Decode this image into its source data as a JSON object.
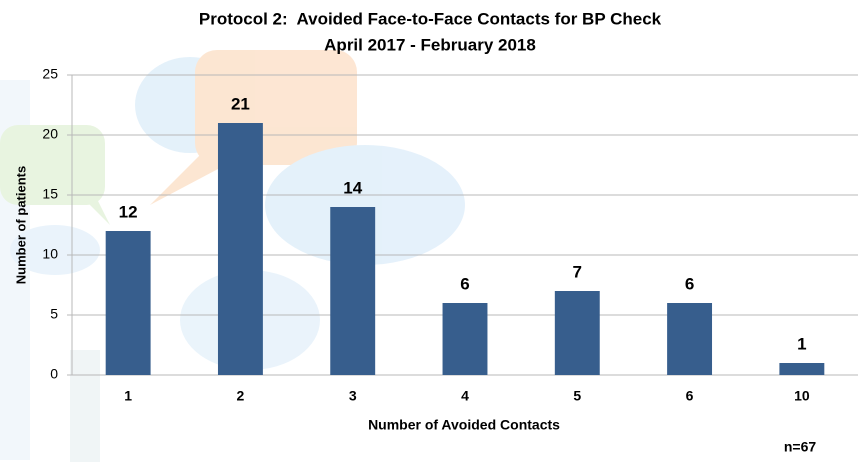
{
  "chart_data": {
    "type": "bar",
    "title": "Protocol 2:  Avoided Face-to-Face Contacts for BP Check",
    "subtitle": "April 2017 - February 2018",
    "x_label": "Number of Avoided Contacts",
    "y_label": "Number of patients",
    "annotation": "n=67",
    "categories": [
      "1",
      "2",
      "3",
      "4",
      "5",
      "6",
      "10"
    ],
    "values": [
      12,
      21,
      14,
      6,
      7,
      6,
      1
    ],
    "color": "#375e8d",
    "ylim": [
      0,
      25
    ],
    "yticks": [
      0,
      5,
      10,
      15,
      20,
      25
    ],
    "grid": true
  }
}
